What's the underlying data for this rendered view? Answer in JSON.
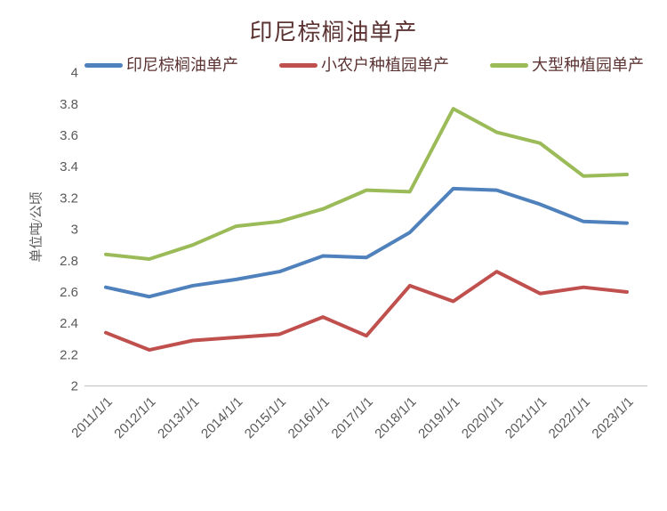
{
  "chart_data": {
    "type": "line",
    "title": "印尼棕榈油单产",
    "ylabel": "单位吨/公顷",
    "xlabel": "",
    "ylim": [
      2,
      4
    ],
    "ytick_step": 0.2,
    "ytick_labels": [
      "4",
      "3.8",
      "3.6",
      "3.4",
      "3.2",
      "3",
      "2.8",
      "2.6",
      "2.4",
      "2.2",
      "2"
    ],
    "grid": false,
    "legend_position": "top",
    "categories": [
      "2011/1/1",
      "2012/1/1",
      "2013/1/1",
      "2014/1/1",
      "2015/1/1",
      "2016/1/1",
      "2017/1/1",
      "2018/1/1",
      "2019/1/1",
      "2020/1/1",
      "2021/1/1",
      "2022/1/1",
      "2023/1/1"
    ],
    "series": [
      {
        "name": "印尼棕榈油单产",
        "color": "#4F81BD",
        "values": [
          2.63,
          2.57,
          2.64,
          2.68,
          2.73,
          2.83,
          2.82,
          2.98,
          3.26,
          3.25,
          3.16,
          3.05,
          3.04
        ]
      },
      {
        "name": "小农户种植园单产",
        "color": "#C0504D",
        "values": [
          2.34,
          2.23,
          2.29,
          2.31,
          2.33,
          2.44,
          2.32,
          2.64,
          2.54,
          2.73,
          2.59,
          2.63,
          2.6
        ]
      },
      {
        "name": "大型种植园单产",
        "color": "#9BBB59",
        "values": [
          2.84,
          2.81,
          2.9,
          3.02,
          3.05,
          3.13,
          3.25,
          3.24,
          3.77,
          3.62,
          3.55,
          3.34,
          3.35
        ]
      }
    ],
    "colors": {
      "title_text": "#5c3333",
      "legend_text": "#5c3333",
      "axis_text": "#595959",
      "axis_line": "#c9c9c9",
      "background": "#ffffff"
    }
  }
}
